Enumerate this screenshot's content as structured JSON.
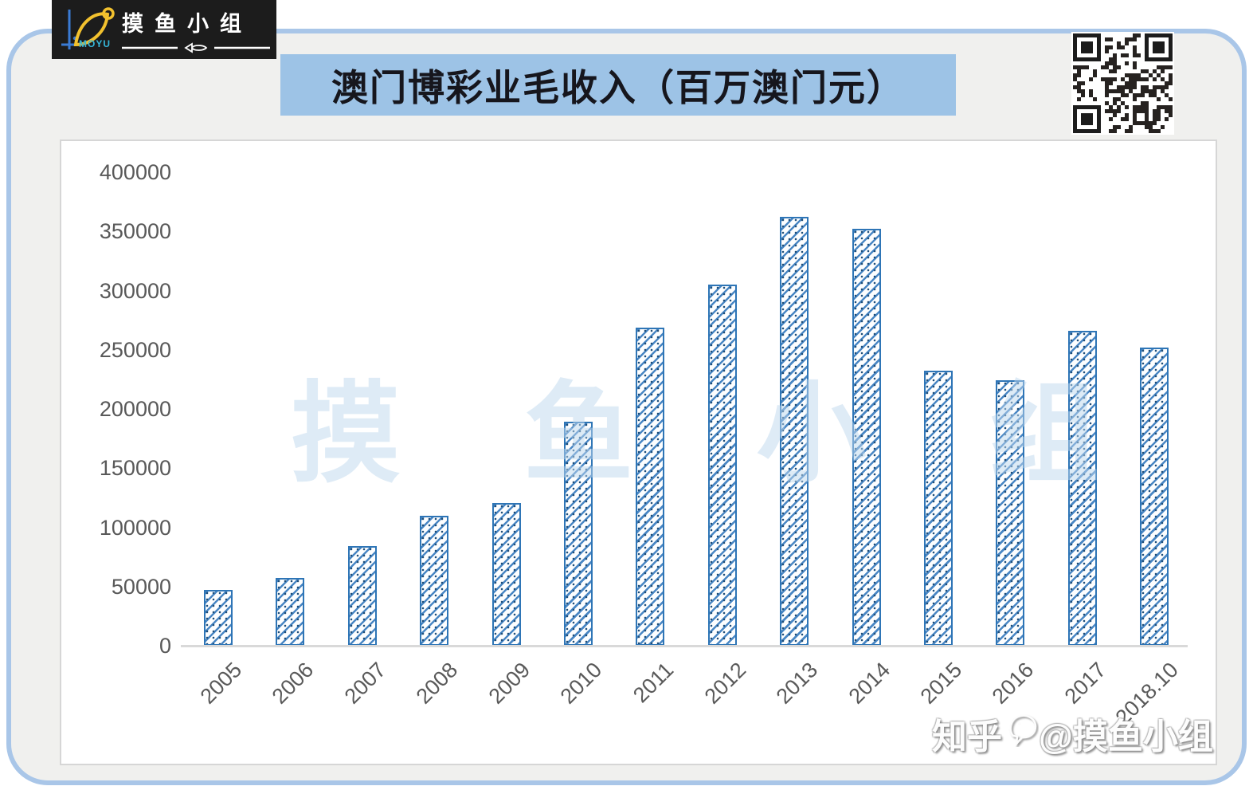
{
  "logo": {
    "brand": "MOYU",
    "name": "摸鱼小组"
  },
  "title": "澳门博彩业毛收入（百万澳门元）",
  "watermark_center": "摸 鱼 小 组",
  "watermark_corner": {
    "prefix": "知乎",
    "handle": "@摸鱼小组"
  },
  "colors": {
    "bar_border": "#2E75B6",
    "bar_hatch": "#4A87C4",
    "title_bg": "#9DC3E6",
    "frame_border": "#A9C6E8",
    "card_bg": "#F0F0EE",
    "axis_text": "#595959",
    "baseline": "#D9D9D9",
    "watermark_blue": "#BDD7EE",
    "logo_bg": "#1C1C1C",
    "logo_fish_yellow": "#F2C12E",
    "logo_cyan": "#35B6D9"
  },
  "chart_data": {
    "type": "bar",
    "title": "澳门博彩业毛收入（百万澳门元）",
    "unit": "百万澳门元",
    "categories": [
      "2005",
      "2006",
      "2007",
      "2008",
      "2009",
      "2010",
      "2011",
      "2012",
      "2013",
      "2014",
      "2015",
      "2016",
      "2017",
      "2018.10"
    ],
    "values": [
      47000,
      57500,
      84000,
      110000,
      120500,
      189500,
      269000,
      305000,
      362000,
      352000,
      232000,
      224500,
      266000,
      252000
    ],
    "xlabel": "",
    "ylabel": "",
    "ylim": [
      0,
      400000
    ],
    "ytick_step": 50000,
    "ytick_labels": [
      "400000",
      "350000",
      "300000",
      "250000",
      "200000",
      "150000",
      "100000",
      "50000",
      "0"
    ],
    "grid": false,
    "legend": null,
    "bar_style": "white fill with blue diagonal hatch pattern, blue outline",
    "x_label_rotation_deg": -45
  }
}
